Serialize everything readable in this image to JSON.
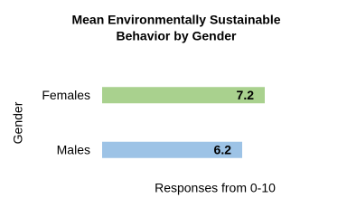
{
  "chart_data": {
    "type": "bar",
    "orientation": "horizontal",
    "title": [
      "Mean Environmentally Sustainable",
      "Behavior by Gender"
    ],
    "categories": [
      "Females",
      "Males"
    ],
    "values": [
      7.2,
      6.2
    ],
    "colors": [
      "#a9d18e",
      "#9dc3e6"
    ],
    "xlabel": "Responses from 0-10",
    "ylabel": "Gender",
    "xlim": [
      0,
      10
    ],
    "grid": false
  }
}
